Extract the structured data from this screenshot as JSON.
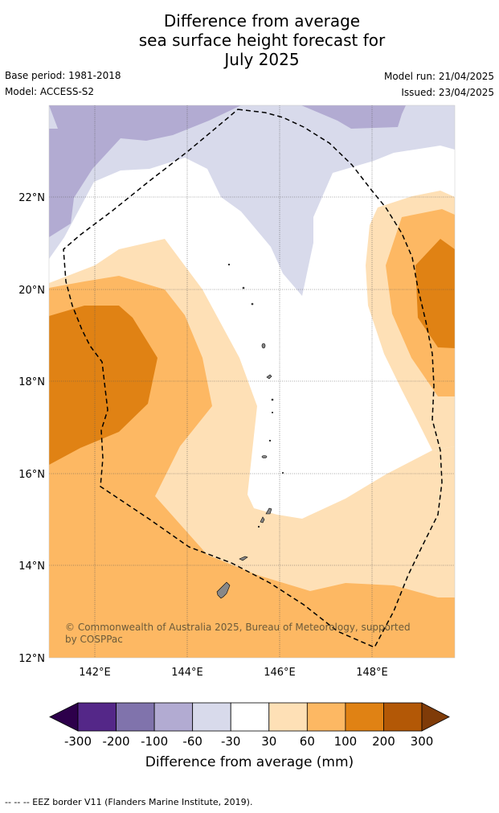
{
  "title": {
    "line1": "Difference from average",
    "line2": "sea surface height forecast for",
    "line3": "July 2025"
  },
  "meta": {
    "base_period": "Base period: 1981-2018",
    "model": "Model: ACCESS-S2",
    "model_run": "Model run: 21/04/2025",
    "issued": "Issued: 23/04/2025"
  },
  "map": {
    "lat_labels": [
      "22°N",
      "20°N",
      "18°N",
      "16°N",
      "14°N",
      "12°N"
    ],
    "lon_labels": [
      "142°E",
      "144°E",
      "146°E",
      "148°E"
    ],
    "copyright_line1": "© Commonwealth of Australia 2025, Bureau of Meteorology, supported",
    "copyright_line2": "by COSPPac"
  },
  "legend": {
    "title": "Difference from average (mm)",
    "ticks": [
      "-300",
      "-200",
      "-100",
      "-60",
      "-30",
      "30",
      "60",
      "100",
      "200",
      "300"
    ],
    "colors": [
      "#2d004b",
      "#542788",
      "#8073ac",
      "#b2abd2",
      "#d8daeb",
      "#ffffff",
      "#fee0b6",
      "#fdb863",
      "#e08214",
      "#b35806",
      "#7f3b08"
    ]
  },
  "footnote": "--  --  -- EEZ border V11 (Flanders Marine Institute, 2019)."
}
